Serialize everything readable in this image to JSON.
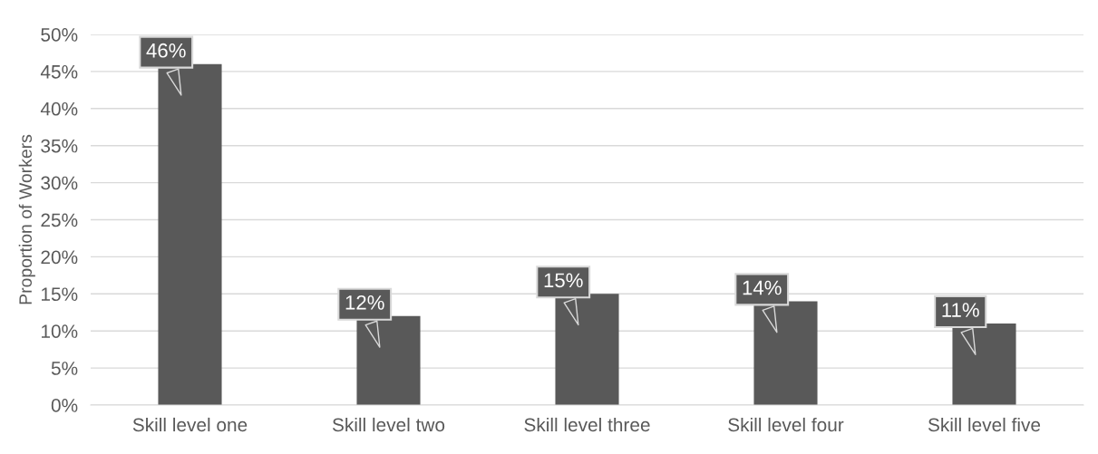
{
  "chart_data": {
    "type": "bar",
    "categories": [
      "Skill level one",
      "Skill level two",
      "Skill level three",
      "Skill level four",
      "Skill level five"
    ],
    "values": [
      46,
      12,
      15,
      14,
      11
    ],
    "value_labels": [
      "46%",
      "12%",
      "15%",
      "14%",
      "11%"
    ],
    "color": "#595959",
    "ylabel": "Proportion of Workers",
    "ylim": [
      0,
      50
    ],
    "yticks": [
      {
        "value": 0,
        "label": "0%"
      },
      {
        "value": 5,
        "label": "5%"
      },
      {
        "value": 10,
        "label": "10%"
      },
      {
        "value": 15,
        "label": "15%"
      },
      {
        "value": 20,
        "label": "20%"
      },
      {
        "value": 25,
        "label": "25%"
      },
      {
        "value": 30,
        "label": "30%"
      },
      {
        "value": 35,
        "label": "35%"
      },
      {
        "value": 40,
        "label": "40%"
      },
      {
        "value": 45,
        "label": "45%"
      },
      {
        "value": 50,
        "label": "50%"
      }
    ],
    "grid": "y"
  }
}
